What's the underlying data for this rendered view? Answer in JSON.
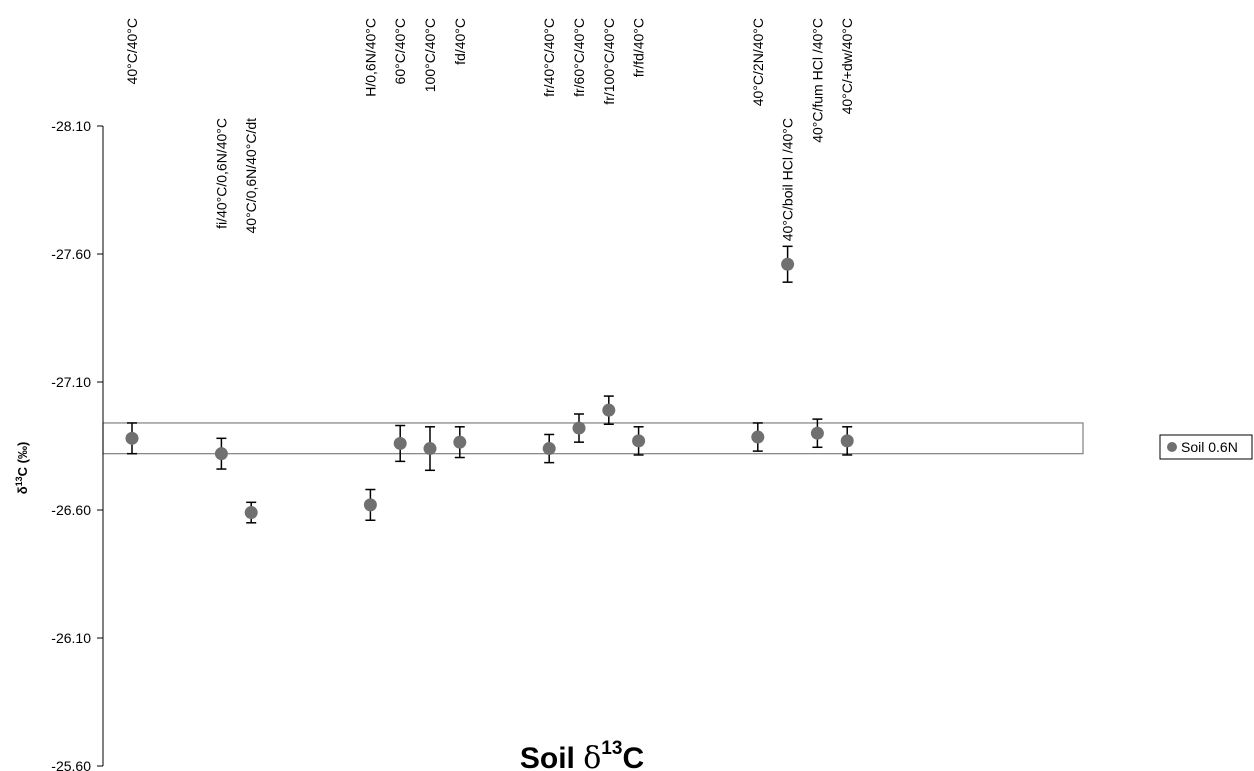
{
  "chart_data": {
    "type": "scatter",
    "title": "Soil δ13C",
    "title_main": "Soil ",
    "title_delta": "δ",
    "title_sup": "13",
    "title_end": "C",
    "ylabel_delta": "δ",
    "ylabel_sup": "13",
    "ylabel_rest": "C (‰)",
    "y_axis": {
      "reversed": true,
      "ylim": [
        -28.1,
        -25.6
      ],
      "ticks": [
        -28.1,
        -27.6,
        -27.1,
        -26.6,
        -26.1,
        -25.6
      ],
      "tick_labels": [
        "-28.10",
        "-27.60",
        "-27.10",
        "-26.60",
        "-26.10",
        "-25.60"
      ]
    },
    "reference_band": {
      "from": -26.94,
      "to": -26.82,
      "color": "#808080"
    },
    "marker_color": "#707070",
    "legend": {
      "label": "Soil 0.6N",
      "placement": "right"
    },
    "points": [
      {
        "label": "40°C/40°C",
        "slot": 0,
        "y": -26.88,
        "err": 0.06,
        "label_row": "upper"
      },
      {
        "label": "fi/40°C/0,6N/40°C",
        "slot": 3,
        "y": -26.82,
        "err": 0.06,
        "label_row": "lower"
      },
      {
        "label": "40°C/0,6N/40°C/dt",
        "slot": 4,
        "y": -26.59,
        "err": 0.04,
        "label_row": "lower"
      },
      {
        "label": "H/0,6N/40°C",
        "slot": 8,
        "y": -26.62,
        "err": 0.06,
        "label_row": "upper"
      },
      {
        "label": "60°C/40°C",
        "slot": 9,
        "y": -26.86,
        "err": 0.07,
        "label_row": "upper"
      },
      {
        "label": "100°C/40°C",
        "slot": 10,
        "y": -26.84,
        "err": 0.085,
        "label_row": "upper"
      },
      {
        "label": "fd/40°C",
        "slot": 11,
        "y": -26.865,
        "err": 0.06,
        "label_row": "upper"
      },
      {
        "label": "fr/40°C/40°C",
        "slot": 14,
        "y": -26.84,
        "err": 0.055,
        "label_row": "upper"
      },
      {
        "label": "fr/60°C/40°C",
        "slot": 15,
        "y": -26.92,
        "err": 0.055,
        "label_row": "upper"
      },
      {
        "label": "fr/100°C/40°C",
        "slot": 16,
        "y": -26.99,
        "err": 0.055,
        "label_row": "upper"
      },
      {
        "label": "fr/fd/40°C",
        "slot": 17,
        "y": -26.87,
        "err": 0.055,
        "label_row": "upper"
      },
      {
        "label": "40°C/2N/40°C",
        "slot": 21,
        "y": -26.885,
        "err": 0.055,
        "label_row": "upper"
      },
      {
        "label": "40°C/boil HCl /40°C",
        "slot": 22,
        "y": -27.56,
        "err": 0.07,
        "label_row": "lower"
      },
      {
        "label": "40°C/fum HCl /40°C",
        "slot": 23,
        "y": -26.9,
        "err": 0.055,
        "label_row": "upper"
      },
      {
        "label": "40°C/+dw/40°C",
        "slot": 24,
        "y": -26.87,
        "err": 0.055,
        "label_row": "upper"
      }
    ]
  }
}
